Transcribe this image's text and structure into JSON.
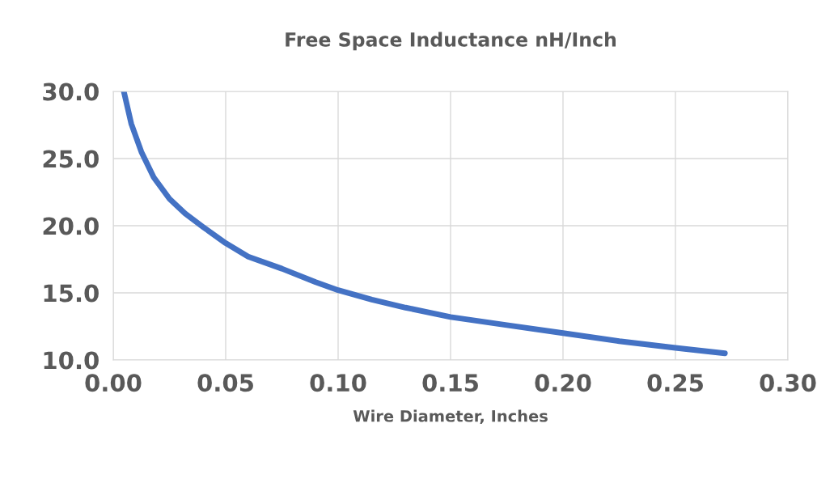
{
  "chart_data": {
    "type": "line",
    "title": "Free Space Inductance nH/Inch",
    "xlabel": "Wire Diameter, Inches",
    "x": [
      0.0047,
      0.008,
      0.0125,
      0.018,
      0.025,
      0.032,
      0.04,
      0.05,
      0.06,
      0.075,
      0.09,
      0.1,
      0.115,
      0.13,
      0.15,
      0.175,
      0.2,
      0.225,
      0.25,
      0.272
    ],
    "series": [
      {
        "color": "#4472c4",
        "values": [
          30.0,
          27.6,
          25.5,
          23.6,
          22.0,
          20.9,
          19.9,
          18.7,
          17.7,
          16.8,
          15.8,
          15.2,
          14.5,
          13.9,
          13.2,
          12.6,
          12.0,
          11.4,
          10.9,
          10.5
        ]
      }
    ],
    "xlim": [
      0,
      0.3
    ],
    "xticks": [
      {
        "value": 0,
        "label": "0.00"
      },
      {
        "value": 0.05,
        "label": "0.05"
      },
      {
        "value": 0.1,
        "label": "0.10"
      },
      {
        "value": 0.15,
        "label": "0.15"
      },
      {
        "value": 0.2,
        "label": "0.20"
      },
      {
        "value": 0.25,
        "label": "0.25"
      },
      {
        "value": 0.3,
        "label": "0.30"
      }
    ],
    "ylim": [
      10,
      30
    ],
    "yticks": [
      {
        "value": 10,
        "label": "10.0"
      },
      {
        "value": 15,
        "label": "15.0"
      },
      {
        "value": 20,
        "label": "20.0"
      },
      {
        "value": 25,
        "label": "25.0"
      },
      {
        "value": 30,
        "label": "30.0"
      }
    ],
    "grid": true,
    "marker": "none",
    "line_style": "solid",
    "legend": false
  }
}
